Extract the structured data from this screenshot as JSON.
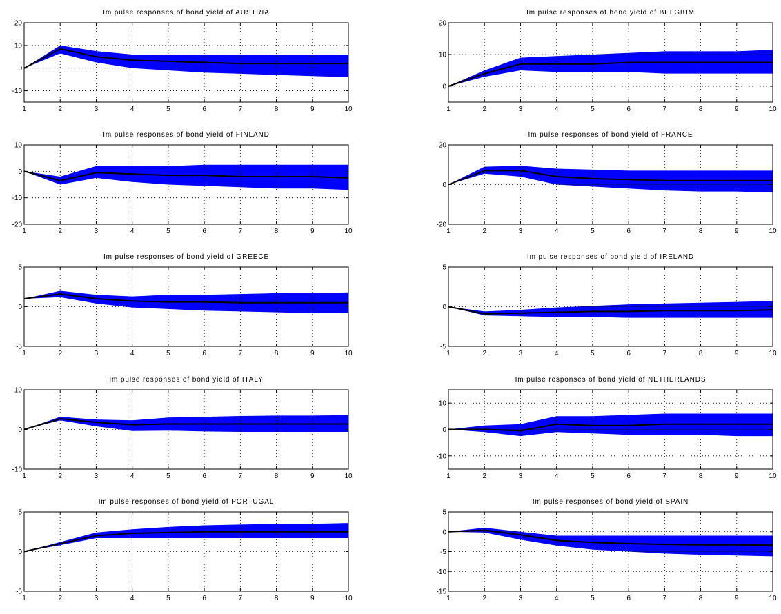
{
  "colors": {
    "band": "#0000ff",
    "line": "#000000",
    "axes": "#000000",
    "grid": "#000000"
  },
  "chart_data": [
    {
      "type": "line",
      "title": "Im pulse responses of bond yield of AUSTRIA",
      "x": [
        1,
        2,
        3,
        4,
        5,
        6,
        7,
        8,
        9,
        10
      ],
      "x_ticks": [
        "1",
        "2",
        "3",
        "4",
        "5",
        "6",
        "7",
        "8",
        "9",
        "10"
      ],
      "xlim": [
        1,
        10
      ],
      "ylim": [
        -15,
        20
      ],
      "y_ticks": [
        -10,
        0,
        10,
        20
      ],
      "y_tick_labels": [
        "-10",
        "0",
        "10",
        "20"
      ],
      "grid": true,
      "series": [
        {
          "role": "upper",
          "values": [
            0,
            10,
            7.5,
            6,
            6,
            6,
            6,
            6,
            6,
            6
          ]
        },
        {
          "role": "lower",
          "values": [
            0,
            6.5,
            2.5,
            0,
            -1,
            -2,
            -2.5,
            -3,
            -3.5,
            -4
          ]
        },
        {
          "role": "median",
          "values": [
            0,
            8.5,
            5,
            3.5,
            3,
            2.5,
            2,
            2,
            2,
            2
          ]
        }
      ]
    },
    {
      "type": "line",
      "title": "Im pulse responses of bond yield of BELGIUM",
      "x": [
        1,
        2,
        3,
        4,
        5,
        6,
        7,
        8,
        9,
        10
      ],
      "x_ticks": [
        "1",
        "2",
        "3",
        "4",
        "5",
        "6",
        "7",
        "8",
        "9",
        "10"
      ],
      "xlim": [
        1,
        10
      ],
      "ylim": [
        -5,
        20
      ],
      "y_ticks": [
        0,
        10,
        20
      ],
      "y_tick_labels": [
        "0",
        "10",
        "20"
      ],
      "grid": true,
      "series": [
        {
          "role": "upper",
          "values": [
            0,
            5,
            9,
            9.5,
            10,
            10.5,
            11,
            11,
            11,
            11.5
          ]
        },
        {
          "role": "lower",
          "values": [
            0,
            3,
            5,
            4.5,
            4.5,
            4.5,
            4,
            4,
            4,
            4
          ]
        },
        {
          "role": "median",
          "values": [
            0,
            4,
            7,
            7,
            7,
            7.5,
            7.5,
            7.5,
            7.5,
            7.5
          ]
        }
      ]
    },
    {
      "type": "line",
      "title": "Im pulse responses of bond yield of FINLAND",
      "x": [
        1,
        2,
        3,
        4,
        5,
        6,
        7,
        8,
        9,
        10
      ],
      "x_ticks": [
        "1",
        "2",
        "3",
        "4",
        "5",
        "6",
        "7",
        "8",
        "9",
        "10"
      ],
      "xlim": [
        1,
        10
      ],
      "ylim": [
        -20,
        10
      ],
      "y_ticks": [
        -20,
        -10,
        0,
        10
      ],
      "y_tick_labels": [
        "-20",
        "-10",
        "0",
        "10"
      ],
      "grid": true,
      "series": [
        {
          "role": "upper",
          "values": [
            0,
            -2,
            2,
            2,
            2,
            2.5,
            2.5,
            2.5,
            2.5,
            2.5
          ]
        },
        {
          "role": "lower",
          "values": [
            0,
            -5,
            -2.5,
            -4,
            -5,
            -5.5,
            -6,
            -6.5,
            -6.5,
            -7
          ]
        },
        {
          "role": "median",
          "values": [
            0,
            -3.5,
            -0.5,
            -1,
            -1.5,
            -1.5,
            -2,
            -2,
            -2,
            -2.5
          ]
        }
      ]
    },
    {
      "type": "line",
      "title": "Im pulse responses of bond yield of FRANCE",
      "x": [
        1,
        2,
        3,
        4,
        5,
        6,
        7,
        8,
        9,
        10
      ],
      "x_ticks": [
        "1",
        "2",
        "3",
        "4",
        "5",
        "6",
        "7",
        "8",
        "9",
        "10"
      ],
      "xlim": [
        1,
        10
      ],
      "ylim": [
        -20,
        20
      ],
      "y_ticks": [
        -20,
        0,
        20
      ],
      "y_tick_labels": [
        "-20",
        "0",
        "20"
      ],
      "grid": true,
      "series": [
        {
          "role": "upper",
          "values": [
            0,
            9,
            9.5,
            8,
            7.5,
            7,
            7,
            7,
            7,
            7
          ]
        },
        {
          "role": "lower",
          "values": [
            0,
            5.5,
            4,
            0,
            -1,
            -2,
            -3,
            -3.5,
            -3.5,
            -4
          ]
        },
        {
          "role": "median",
          "values": [
            0,
            7,
            7,
            4,
            3,
            2.5,
            2,
            2,
            2,
            2
          ]
        }
      ]
    },
    {
      "type": "line",
      "title": "Im pulse responses of bond yield of GREECE",
      "x": [
        1,
        2,
        3,
        4,
        5,
        6,
        7,
        8,
        9,
        10
      ],
      "x_ticks": [
        "1",
        "2",
        "3",
        "4",
        "5",
        "6",
        "7",
        "8",
        "9",
        "10"
      ],
      "xlim": [
        1,
        10
      ],
      "ylim": [
        -5,
        5
      ],
      "y_ticks": [
        -5,
        0,
        5
      ],
      "y_tick_labels": [
        "-5",
        "0",
        "5"
      ],
      "grid": true,
      "series": [
        {
          "role": "upper",
          "values": [
            1,
            2,
            1.5,
            1.3,
            1.5,
            1.5,
            1.6,
            1.7,
            1.7,
            1.8
          ]
        },
        {
          "role": "lower",
          "values": [
            1,
            1.2,
            0.4,
            -0.1,
            -0.3,
            -0.5,
            -0.6,
            -0.7,
            -0.8,
            -0.8
          ]
        },
        {
          "role": "median",
          "values": [
            1,
            1.6,
            1,
            0.7,
            0.6,
            0.6,
            0.5,
            0.5,
            0.5,
            0.5
          ]
        }
      ]
    },
    {
      "type": "line",
      "title": "Im pulse responses of bond yield of IRELAND",
      "x": [
        1,
        2,
        3,
        4,
        5,
        6,
        7,
        8,
        9,
        10
      ],
      "x_ticks": [
        "1",
        "2",
        "3",
        "4",
        "5",
        "6",
        "7",
        "8",
        "9",
        "10"
      ],
      "xlim": [
        1,
        10
      ],
      "ylim": [
        -5,
        5
      ],
      "y_ticks": [
        -5,
        0,
        5
      ],
      "y_tick_labels": [
        "-5",
        "0",
        "5"
      ],
      "grid": true,
      "series": [
        {
          "role": "upper",
          "values": [
            0,
            -0.6,
            -0.4,
            -0.1,
            0.1,
            0.3,
            0.4,
            0.5,
            0.6,
            0.7
          ]
        },
        {
          "role": "lower",
          "values": [
            0,
            -1.1,
            -1.2,
            -1.3,
            -1.3,
            -1.4,
            -1.4,
            -1.4,
            -1.4,
            -1.4
          ]
        },
        {
          "role": "median",
          "values": [
            0,
            -0.9,
            -0.8,
            -0.7,
            -0.6,
            -0.6,
            -0.5,
            -0.5,
            -0.5,
            -0.4
          ]
        }
      ]
    },
    {
      "type": "line",
      "title": "Im pulse responses of bond yield of ITALY",
      "x": [
        1,
        2,
        3,
        4,
        5,
        6,
        7,
        8,
        9,
        10
      ],
      "x_ticks": [
        "1",
        "2",
        "3",
        "4",
        "5",
        "6",
        "7",
        "8",
        "9",
        "10"
      ],
      "xlim": [
        1,
        10
      ],
      "ylim": [
        -10,
        10
      ],
      "y_ticks": [
        -10,
        0,
        10
      ],
      "y_tick_labels": [
        "-10",
        "0",
        "10"
      ],
      "grid": true,
      "series": [
        {
          "role": "upper",
          "values": [
            0,
            3.2,
            2.5,
            2.3,
            3,
            3.2,
            3.4,
            3.5,
            3.5,
            3.6
          ]
        },
        {
          "role": "lower",
          "values": [
            0,
            2.3,
            0.8,
            -0.4,
            -0.3,
            -0.5,
            -0.6,
            -0.6,
            -0.6,
            -0.6
          ]
        },
        {
          "role": "median",
          "values": [
            0,
            2.7,
            1.8,
            1.2,
            1.4,
            1.4,
            1.4,
            1.4,
            1.4,
            1.4
          ]
        }
      ]
    },
    {
      "type": "line",
      "title": "Im pulse responses of bond yield of NETHERLANDS",
      "x": [
        1,
        2,
        3,
        4,
        5,
        6,
        7,
        8,
        9,
        10
      ],
      "x_ticks": [
        "1",
        "2",
        "3",
        "4",
        "5",
        "6",
        "7",
        "8",
        "9",
        "10"
      ],
      "xlim": [
        1,
        10
      ],
      "ylim": [
        -15,
        15
      ],
      "y_ticks": [
        -10,
        0,
        10
      ],
      "y_tick_labels": [
        "-10",
        "0",
        "10"
      ],
      "grid": true,
      "series": [
        {
          "role": "upper",
          "values": [
            0,
            1.5,
            2,
            5,
            5,
            5.5,
            6,
            6,
            6,
            6
          ]
        },
        {
          "role": "lower",
          "values": [
            0,
            -1,
            -2.5,
            -1,
            -1.5,
            -2,
            -2,
            -2,
            -2.5,
            -2.5
          ]
        },
        {
          "role": "median",
          "values": [
            0,
            0,
            -0.5,
            2,
            1.5,
            1.5,
            2,
            2,
            2,
            2
          ]
        }
      ]
    },
    {
      "type": "line",
      "title": "Im pulse responses of bond yield of PORTUGAL",
      "x": [
        1,
        2,
        3,
        4,
        5,
        6,
        7,
        8,
        9,
        10
      ],
      "x_ticks": [
        "1",
        "2",
        "3",
        "4",
        "5",
        "6",
        "7",
        "8",
        "9",
        "10"
      ],
      "xlim": [
        1,
        10
      ],
      "ylim": [
        -5,
        5
      ],
      "y_ticks": [
        -5,
        0,
        5
      ],
      "y_tick_labels": [
        "-5",
        "0",
        "5"
      ],
      "grid": true,
      "series": [
        {
          "role": "upper",
          "values": [
            0,
            1.2,
            2.4,
            2.8,
            3.1,
            3.3,
            3.4,
            3.5,
            3.5,
            3.6
          ]
        },
        {
          "role": "lower",
          "values": [
            0,
            0.8,
            1.7,
            1.7,
            1.7,
            1.7,
            1.7,
            1.7,
            1.7,
            1.7
          ]
        },
        {
          "role": "median",
          "values": [
            0,
            1,
            2,
            2.3,
            2.4,
            2.5,
            2.5,
            2.5,
            2.5,
            2.5
          ]
        }
      ]
    },
    {
      "type": "line",
      "title": "Im pulse responses of bond yield of SPAIN",
      "x": [
        1,
        2,
        3,
        4,
        5,
        6,
        7,
        8,
        9,
        10
      ],
      "x_ticks": [
        "1",
        "2",
        "3",
        "4",
        "5",
        "6",
        "7",
        "8",
        "9",
        "10"
      ],
      "xlim": [
        1,
        10
      ],
      "ylim": [
        -15,
        5
      ],
      "y_ticks": [
        -15,
        -10,
        -5,
        0,
        5
      ],
      "y_tick_labels": [
        "-15",
        "-10",
        "-5",
        "0",
        "5"
      ],
      "grid": true,
      "series": [
        {
          "role": "upper",
          "values": [
            0,
            1,
            0,
            -1,
            -1,
            -1,
            -1,
            -1,
            -1,
            -1
          ]
        },
        {
          "role": "lower",
          "values": [
            0,
            -0.2,
            -2,
            -3.5,
            -4.5,
            -5,
            -5.5,
            -5.8,
            -6,
            -6.2
          ]
        },
        {
          "role": "median",
          "values": [
            0,
            0.4,
            -0.8,
            -2.2,
            -2.7,
            -3,
            -3.2,
            -3.3,
            -3.3,
            -3.4
          ]
        }
      ]
    }
  ]
}
